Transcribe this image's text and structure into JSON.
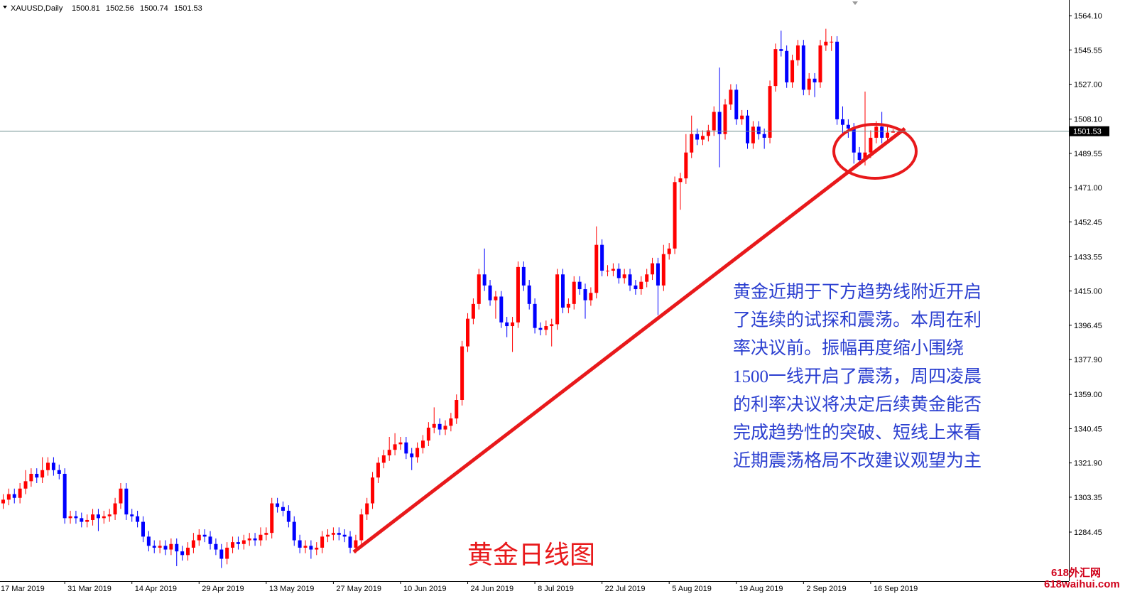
{
  "chart_data": {
    "type": "candlestick",
    "symbol_label": "XAUUSD,Daily",
    "up_color": "#ff0000",
    "down_color": "#0000ff",
    "categories": [
      "17 Mar 2019",
      null,
      null,
      null,
      null,
      null,
      null,
      null,
      null,
      null,
      null,
      null,
      "31 Mar 2019",
      null,
      null,
      null,
      null,
      null,
      null,
      null,
      null,
      null,
      null,
      null,
      "14 Apr 2019",
      null,
      null,
      null,
      null,
      null,
      null,
      null,
      null,
      null,
      null,
      null,
      "29 Apr 2019",
      null,
      null,
      null,
      null,
      null,
      null,
      null,
      null,
      null,
      null,
      null,
      "13 May 2019",
      null,
      null,
      null,
      null,
      null,
      null,
      null,
      null,
      null,
      null,
      null,
      "27 May 2019",
      null,
      null,
      null,
      null,
      null,
      null,
      null,
      null,
      null,
      null,
      null,
      "10 Jun 2019",
      null,
      null,
      null,
      null,
      null,
      null,
      null,
      null,
      null,
      null,
      null,
      "24 Jun 2019",
      null,
      null,
      null,
      null,
      null,
      null,
      null,
      null,
      null,
      null,
      null,
      "8 Jul 2019",
      null,
      null,
      null,
      null,
      null,
      null,
      null,
      null,
      null,
      null,
      null,
      "22 Jul 2019",
      null,
      null,
      null,
      null,
      null,
      null,
      null,
      null,
      null,
      null,
      null,
      "5 Aug 2019",
      null,
      null,
      null,
      null,
      null,
      null,
      null,
      null,
      null,
      null,
      null,
      "19 Aug 2019",
      null,
      null,
      null,
      null,
      null,
      null,
      null,
      null,
      null,
      null,
      null,
      "2 Sep 2019",
      null,
      null,
      null,
      null,
      null,
      null,
      null,
      null,
      null,
      null,
      null,
      "16 Sep 2019",
      null,
      null,
      null,
      null
    ],
    "open": [
      1298,
      1300,
      1302,
      1305,
      1303,
      1308,
      1312,
      1316,
      1314,
      1318,
      1322,
      1318,
      1316,
      1292,
      1293,
      1292,
      1290,
      1291,
      1294,
      1292,
      1293,
      1294,
      1300,
      1308,
      1294,
      1293,
      1290,
      1282,
      1277,
      1276,
      1277,
      1275,
      1278,
      1274,
      1272,
      1276,
      1280,
      1283,
      1282,
      1278,
      1275,
      1270,
      1276,
      1279,
      1278,
      1280,
      1281,
      1280,
      1283,
      1284,
      1300,
      1298,
      1296,
      1290,
      1280,
      1276,
      1277,
      1275,
      1276,
      1282,
      1283,
      1284,
      1283,
      1282,
      1276,
      1280,
      1294,
      1300,
      1314,
      1322,
      1326,
      1329,
      1332,
      1333,
      1327,
      1325,
      1330,
      1334,
      1341,
      1343,
      1340,
      1342,
      1346,
      1356,
      1385,
      1400,
      1408,
      1424,
      1418,
      1410,
      1412,
      1398,
      1396,
      1398,
      1428,
      1418,
      1408,
      1395,
      1394,
      1396,
      1397,
      1424,
      1406,
      1408,
      1420,
      1416,
      1410,
      1414,
      1440,
      1426,
      1426,
      1427,
      1422,
      1424,
      1418,
      1416,
      1420,
      1424,
      1430,
      1418,
      1435,
      1438,
      1474,
      1476,
      1490,
      1500,
      1497,
      1499,
      1502,
      1512,
      1500,
      1516,
      1524,
      1508,
      1510,
      1495,
      1504,
      1500,
      1498,
      1526,
      1546,
      1545,
      1528,
      1540,
      1548,
      1524,
      1530,
      1528,
      1548,
      1550,
      1550,
      1508,
      1505,
      1503,
      1490,
      1486,
      1490,
      1498,
      1504,
      1498,
      1500.81
    ],
    "high": [
      1303,
      1305,
      1308,
      1308,
      1311,
      1318,
      1319,
      1319,
      1325,
      1325,
      1325,
      1321,
      1319,
      1296,
      1296,
      1295,
      1294,
      1297,
      1297,
      1296,
      1297,
      1303,
      1311,
      1311,
      1297,
      1296,
      1293,
      1285,
      1280,
      1280,
      1280,
      1281,
      1281,
      1277,
      1279,
      1284,
      1286,
      1286,
      1285,
      1281,
      1278,
      1279,
      1282,
      1282,
      1283,
      1284,
      1284,
      1287,
      1287,
      1303,
      1303,
      1301,
      1299,
      1293,
      1283,
      1280,
      1280,
      1279,
      1285,
      1286,
      1287,
      1287,
      1286,
      1285,
      1283,
      1297,
      1303,
      1317,
      1325,
      1329,
      1336,
      1338,
      1336,
      1336,
      1330,
      1333,
      1337,
      1344,
      1352,
      1346,
      1345,
      1349,
      1359,
      1388,
      1403,
      1411,
      1427,
      1438,
      1421,
      1415,
      1415,
      1401,
      1401,
      1431,
      1431,
      1421,
      1411,
      1398,
      1399,
      1400,
      1427,
      1427,
      1411,
      1423,
      1423,
      1419,
      1417,
      1450,
      1443,
      1429,
      1430,
      1430,
      1427,
      1427,
      1421,
      1423,
      1427,
      1433,
      1433,
      1440,
      1441,
      1477,
      1479,
      1500,
      1510,
      1503,
      1502,
      1505,
      1515,
      1536,
      1519,
      1527,
      1527,
      1513,
      1513,
      1507,
      1507,
      1503,
      1529,
      1549,
      1556,
      1548,
      1543,
      1551,
      1551,
      1533,
      1533,
      1551,
      1557,
      1553,
      1553,
      1515,
      1508,
      1506,
      1493,
      1523,
      1502,
      1507,
      1512,
      1504,
      1502.56
    ],
    "low": [
      1295,
      1297,
      1299,
      1300,
      1300,
      1305,
      1309,
      1311,
      1311,
      1315,
      1315,
      1313,
      1289,
      1289,
      1289,
      1287,
      1287,
      1288,
      1285,
      1289,
      1290,
      1291,
      1297,
      1291,
      1290,
      1287,
      1279,
      1274,
      1273,
      1273,
      1272,
      1272,
      1266,
      1269,
      1269,
      1273,
      1277,
      1279,
      1275,
      1272,
      1265,
      1267,
      1273,
      1275,
      1275,
      1277,
      1277,
      1277,
      1280,
      1281,
      1295,
      1293,
      1287,
      1277,
      1273,
      1273,
      1270,
      1272,
      1273,
      1279,
      1280,
      1280,
      1279,
      1273,
      1273,
      1277,
      1291,
      1297,
      1311,
      1319,
      1323,
      1326,
      1329,
      1324,
      1318,
      1322,
      1327,
      1331,
      1338,
      1337,
      1337,
      1339,
      1343,
      1353,
      1382,
      1397,
      1405,
      1415,
      1407,
      1400,
      1395,
      1390,
      1382,
      1395,
      1415,
      1405,
      1392,
      1391,
      1391,
      1385,
      1394,
      1403,
      1403,
      1405,
      1413,
      1400,
      1407,
      1411,
      1423,
      1423,
      1423,
      1419,
      1419,
      1415,
      1413,
      1413,
      1417,
      1421,
      1402,
      1415,
      1432,
      1435,
      1459,
      1473,
      1487,
      1494,
      1494,
      1496,
      1499,
      1482,
      1497,
      1513,
      1505,
      1505,
      1492,
      1492,
      1497,
      1492,
      1495,
      1523,
      1542,
      1525,
      1525,
      1537,
      1521,
      1521,
      1520,
      1525,
      1545,
      1545,
      1505,
      1500,
      1498,
      1484,
      1483,
      1483,
      1487,
      1495,
      1495,
      1495,
      1500.74
    ],
    "close": [
      1300,
      1302,
      1305,
      1303,
      1308,
      1312,
      1316,
      1314,
      1318,
      1322,
      1318,
      1316,
      1292,
      1293,
      1292,
      1290,
      1291,
      1294,
      1292,
      1293,
      1294,
      1300,
      1308,
      1294,
      1293,
      1290,
      1282,
      1277,
      1276,
      1277,
      1275,
      1278,
      1274,
      1272,
      1276,
      1280,
      1283,
      1282,
      1278,
      1275,
      1270,
      1276,
      1279,
      1278,
      1280,
      1281,
      1280,
      1283,
      1284,
      1300,
      1298,
      1296,
      1290,
      1280,
      1276,
      1277,
      1275,
      1276,
      1282,
      1283,
      1284,
      1283,
      1282,
      1276,
      1280,
      1294,
      1300,
      1314,
      1322,
      1326,
      1329,
      1332,
      1333,
      1327,
      1325,
      1330,
      1334,
      1341,
      1343,
      1340,
      1342,
      1346,
      1356,
      1385,
      1400,
      1408,
      1424,
      1418,
      1410,
      1412,
      1398,
      1396,
      1398,
      1428,
      1418,
      1408,
      1395,
      1394,
      1396,
      1397,
      1424,
      1406,
      1408,
      1420,
      1416,
      1410,
      1414,
      1440,
      1426,
      1426,
      1427,
      1422,
      1424,
      1418,
      1416,
      1420,
      1424,
      1430,
      1418,
      1435,
      1438,
      1474,
      1476,
      1490,
      1500,
      1497,
      1499,
      1502,
      1512,
      1500,
      1516,
      1524,
      1508,
      1510,
      1495,
      1504,
      1500,
      1498,
      1526,
      1546,
      1545,
      1528,
      1540,
      1548,
      1524,
      1530,
      1528,
      1548,
      1550,
      1550,
      1508,
      1505,
      1503,
      1490,
      1486,
      1490,
      1498,
      1504,
      1498,
      1500.81,
      1501.53
    ],
    "ylim": [
      1257.9,
      1572.6
    ],
    "yticks": [
      {
        "value": 1564.1,
        "label": "1564.10"
      },
      1545.55,
      {
        "value": 1527,
        "label": "1527.00"
      },
      {
        "value": 1508.1,
        "label": "1508.10"
      },
      1489.55,
      {
        "value": 1471,
        "label": "1471.00"
      },
      1452.45,
      1433.55,
      {
        "value": 1415,
        "label": "1415.00"
      },
      1396.45,
      {
        "value": 1377.9,
        "label": "1377.90"
      },
      {
        "value": 1359,
        "label": "1359.00"
      },
      1340.45,
      {
        "value": 1321.9,
        "label": "1321.90"
      },
      1303.35,
      1284.45
    ],
    "grid": false,
    "annotations": [
      "黄金近期于下方趋势线附近开启",
      "了连续的试探和震荡。本周在利",
      "率决议前。振幅再度缩小围绕",
      "1500一线开启了震荡，周四凌晨",
      "的利率决议将决定后续黄金能否",
      "完成趋势性的突破、短线上来看",
      "近期震荡格局不改建议观望为主"
    ],
    "caption": "黄金日线图",
    "watermark": [
      "618外汇网",
      "618waihui.com"
    ]
  }
}
